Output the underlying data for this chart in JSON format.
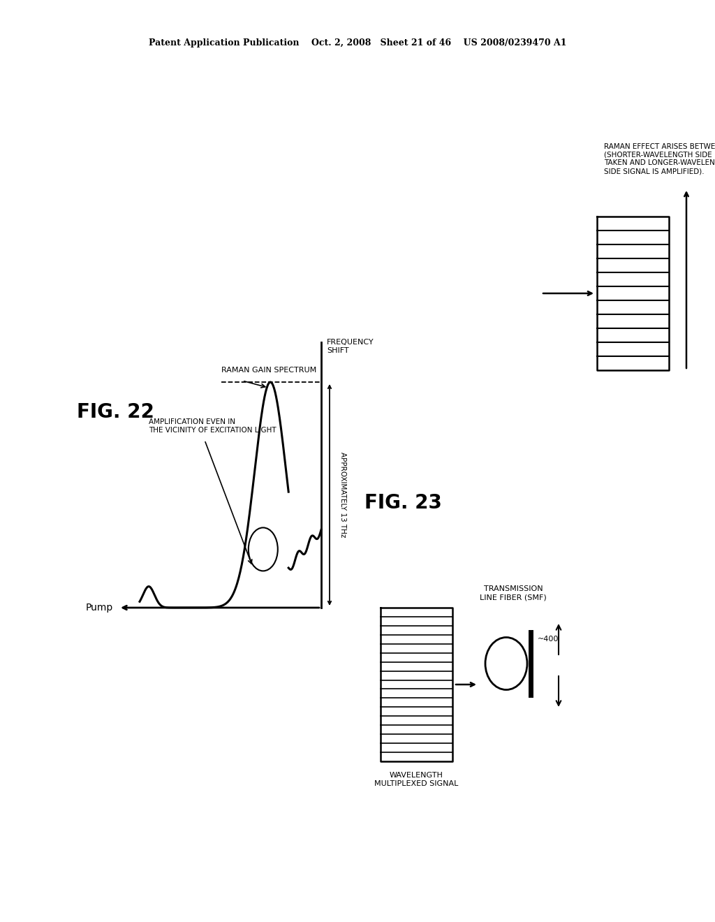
{
  "bg_color": "#ffffff",
  "text_color": "#000000",
  "header": "Patent Application Publication    Oct. 2, 2008   Sheet 21 of 46    US 2008/0239470 A1",
  "fig22_label": "FIG. 22",
  "fig23_label": "FIG. 23",
  "pump_label": "Pump",
  "raman_gain_label": "RAMAN GAIN SPECTRUM",
  "freq_shift_label": "FREQUENCY\nSHIFT",
  "approx_13thz_label": "APPROXIMATELY 13 THz",
  "amplification_label": "AMPLIFICATION EVEN IN\nTHE VICINITY OF EXCITATION LIGHT",
  "raman_effect_label": "RAMAN EFFECT ARISES BETWEEN SIGNALS\n(SHORTER-WAVELENGTH SIDE POWR IS\nTAKEN AND LONGER-WAVELENGTH\nSIDE SIGNAL IS AMPLIFIED).",
  "transmission_label": "TRANSMISSION\nLINE FIBER (SMF)",
  "label_400": "~400",
  "wdm_label": "WAVELENGTH\nMULTIPLEXED SIGNAL"
}
